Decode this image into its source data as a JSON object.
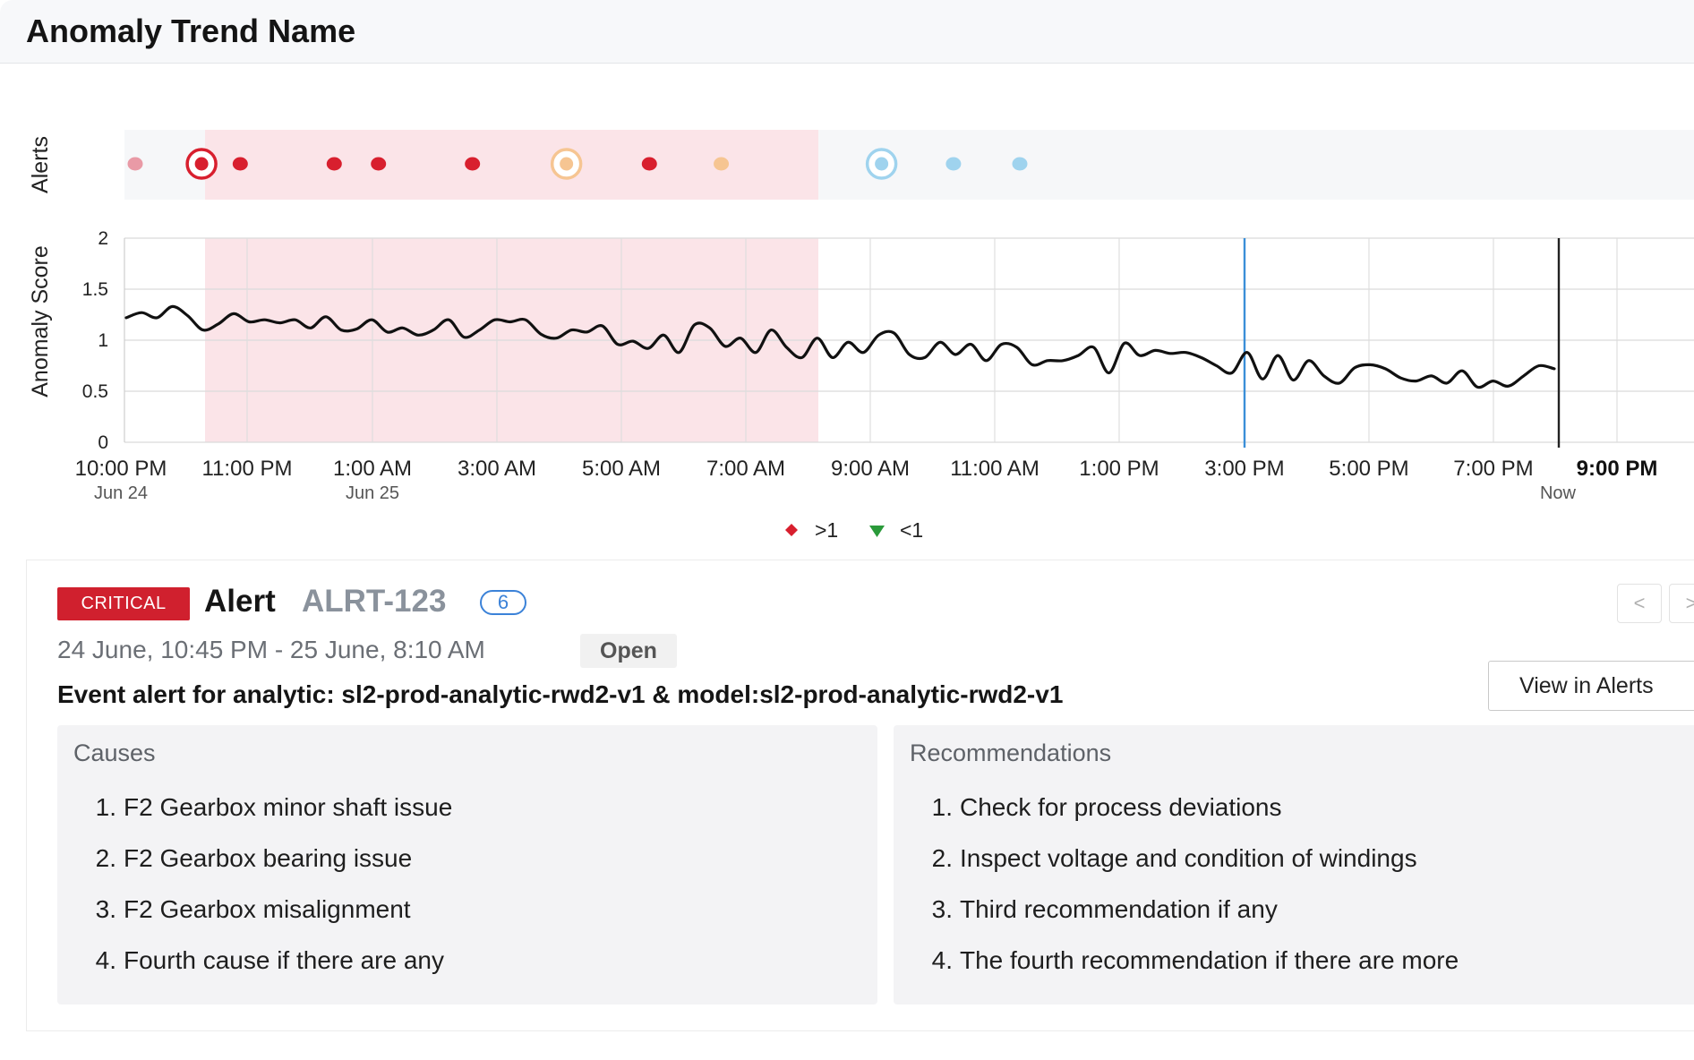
{
  "header": {
    "title": "Anomaly Trend Name"
  },
  "chart_data": {
    "type": "line",
    "ylabel": "Anomaly Score",
    "alerts_label": "Alerts",
    "ylim": [
      0,
      2
    ],
    "y_ticks": [
      "0",
      "0.5",
      "1",
      "1.5",
      "2"
    ],
    "x_ticks": [
      "10:00 PM",
      "11:00 PM",
      "1:00 AM",
      "3:00 AM",
      "5:00 AM",
      "7:00 AM",
      "9:00 AM",
      "11:00 AM",
      "1:00 PM",
      "3:00 PM",
      "5:00 PM",
      "7:00 PM",
      "9:00 PM"
    ],
    "x_subticks": {
      "10:00 PM": "Jun 24",
      "1:00 AM": "Jun 25",
      "9:00 PM": "Now"
    },
    "series": [
      {
        "values": [
          1.22,
          1.27,
          1.22,
          1.33,
          1.24,
          1.1,
          1.16,
          1.26,
          1.18,
          1.2,
          1.17,
          1.2,
          1.12,
          1.23,
          1.1,
          1.11,
          1.2,
          1.08,
          1.12,
          1.05,
          1.1,
          1.2,
          1.03,
          1.1,
          1.2,
          1.18,
          1.2,
          1.06,
          1.02,
          1.1,
          1.08,
          1.14,
          0.96,
          0.99,
          0.92,
          1.05,
          0.88,
          1.15,
          1.12,
          0.94,
          1.02,
          0.88,
          1.1,
          0.93,
          0.83,
          1.02,
          0.83,
          0.98,
          0.88,
          1.05,
          1.07,
          0.86,
          0.83,
          0.98,
          0.86,
          0.96,
          0.8,
          0.96,
          0.93,
          0.76,
          0.8,
          0.8,
          0.85,
          0.93,
          0.68,
          0.97,
          0.85,
          0.9,
          0.87,
          0.88,
          0.83,
          0.75,
          0.68,
          0.88,
          0.62,
          0.85,
          0.61,
          0.8,
          0.65,
          0.58,
          0.73,
          0.76,
          0.72,
          0.63,
          0.6,
          0.65,
          0.58,
          0.7,
          0.54,
          0.6,
          0.55,
          0.65,
          0.75,
          0.72
        ]
      }
    ],
    "anomaly_window": {
      "start": "10:45 PM",
      "end": "8:10 AM"
    },
    "markers": [
      {
        "time": "3:00 PM",
        "color": "#3b8fd8"
      },
      {
        "time": "Now",
        "color": "#222222"
      }
    ],
    "alerts": [
      {
        "pos": 0.0,
        "severity": "critical-faded",
        "color": "#e99aa6",
        "ring": false
      },
      {
        "pos": 0.06,
        "severity": "critical",
        "color": "#d81f2e",
        "ring": true
      },
      {
        "pos": 0.095,
        "severity": "critical",
        "color": "#d81f2e",
        "ring": false
      },
      {
        "pos": 0.18,
        "severity": "critical",
        "color": "#d81f2e",
        "ring": false
      },
      {
        "pos": 0.22,
        "severity": "critical",
        "color": "#d81f2e",
        "ring": false
      },
      {
        "pos": 0.305,
        "severity": "critical",
        "color": "#d81f2e",
        "ring": false
      },
      {
        "pos": 0.39,
        "severity": "warning",
        "color": "#f6c592",
        "ring": true
      },
      {
        "pos": 0.465,
        "severity": "critical",
        "color": "#d81f2e",
        "ring": false
      },
      {
        "pos": 0.53,
        "severity": "warning",
        "color": "#f6c592",
        "ring": false
      },
      {
        "pos": 0.675,
        "severity": "info",
        "color": "#9fd3ee",
        "ring": true
      },
      {
        "pos": 0.74,
        "severity": "info",
        "color": "#9fd3ee",
        "ring": false
      },
      {
        "pos": 0.8,
        "severity": "info",
        "color": "#9fd3ee",
        "ring": false
      }
    ],
    "legend": [
      {
        "label": ">1",
        "color": "#d81f2e",
        "shape": "diamond"
      },
      {
        "label": "<1",
        "color": "#2a9a3a",
        "shape": "triangle-down"
      }
    ]
  },
  "alert": {
    "severity": "CRITICAL",
    "label": "Alert",
    "id": "ALRT-123",
    "count": "6",
    "date_range": "24 June, 10:45 PM - 25 June, 8:10 AM",
    "status": "Open",
    "event": "Event alert for analytic: sl2-prod-analytic-rwd2-v1 & model:sl2-prod-analytic-rwd2-v1",
    "prev_label": "<",
    "next_label": ">",
    "view_button": "View in Alerts",
    "causes_title": "Causes",
    "causes": [
      {
        "num": "1.",
        "text": "F2 Gearbox minor shaft issue"
      },
      {
        "num": "2.",
        "text": "F2 Gearbox bearing issue"
      },
      {
        "num": "3.",
        "text": "F2 Gearbox misalignment"
      },
      {
        "num": "4.",
        "text": "Fourth cause if there are any"
      }
    ],
    "recommendations_title": "Recommendations",
    "recommendations": [
      {
        "num": "1.",
        "text": "Check for process deviations"
      },
      {
        "num": "2.",
        "text": "Inspect voltage and condition of windings"
      },
      {
        "num": "3.",
        "text": "Third recommendation if any"
      },
      {
        "num": "4.",
        "text": "The fourth recommendation if there are more"
      }
    ]
  },
  "colors": {
    "critical": "#d0202e",
    "accent_blue": "#3b82d8",
    "anomaly_band": "#fbe4e8",
    "alert_track": "#f6f7f9"
  }
}
